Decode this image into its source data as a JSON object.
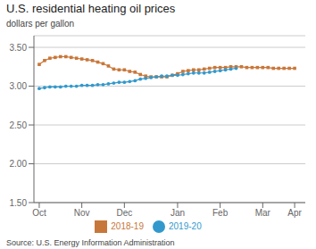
{
  "chart_data": {
    "type": "line",
    "title": "U.S.  residential heating oil prices",
    "ylabel": "dollars per gallon",
    "annotations": [
      "Source: U.S. Energy Information Administration"
    ],
    "xlim": [
      -0.5,
      25
    ],
    "xticks": [
      {
        "value": 0,
        "label": "Oct"
      },
      {
        "value": 4,
        "label": "Nov"
      },
      {
        "value": 8,
        "label": "Dec"
      },
      {
        "value": 13,
        "label": "Jan"
      },
      {
        "value": 17,
        "label": "Feb"
      },
      {
        "value": 21,
        "label": "Mar"
      },
      {
        "value": 24,
        "label": "Apr"
      }
    ],
    "ylim": [
      1.5,
      3.65
    ],
    "yticks": [
      {
        "value": 1.5,
        "label": "1.50"
      },
      {
        "value": 2.0,
        "label": "2.00"
      },
      {
        "value": 2.5,
        "label": "2.50"
      },
      {
        "value": 3.0,
        "label": "3.00"
      },
      {
        "value": 3.5,
        "label": "3.50"
      }
    ],
    "grid": true,
    "legend": "bottom",
    "series": [
      {
        "name": "2018-19",
        "color": "#C8773A",
        "marker": "square",
        "x": [
          0,
          0.5,
          1,
          1.5,
          2,
          2.5,
          3,
          3.5,
          4,
          4.5,
          5,
          5.5,
          6,
          6.5,
          7,
          7.5,
          8,
          8.5,
          9,
          9.5,
          10,
          10.5,
          11,
          11.5,
          12,
          12.5,
          13,
          13.5,
          14,
          14.5,
          15,
          15.5,
          16,
          16.5,
          17,
          17.5,
          18,
          18.5,
          19,
          19.5,
          20,
          20.5,
          21,
          21.5,
          22,
          22.5,
          23,
          23.5,
          24
        ],
        "values": [
          3.28,
          3.33,
          3.36,
          3.37,
          3.38,
          3.38,
          3.37,
          3.36,
          3.35,
          3.34,
          3.33,
          3.31,
          3.29,
          3.26,
          3.22,
          3.21,
          3.21,
          3.19,
          3.18,
          3.15,
          3.13,
          3.12,
          3.12,
          3.12,
          3.12,
          3.14,
          3.16,
          3.19,
          3.2,
          3.21,
          3.21,
          3.22,
          3.23,
          3.24,
          3.24,
          3.24,
          3.25,
          3.25,
          3.25,
          3.24,
          3.24,
          3.24,
          3.24,
          3.24,
          3.23,
          3.23,
          3.23,
          3.23,
          3.23
        ]
      },
      {
        "name": "2019-20",
        "color": "#3399CC",
        "marker": "circle",
        "x": [
          0,
          0.5,
          1,
          1.5,
          2,
          2.5,
          3,
          3.5,
          4,
          4.5,
          5,
          5.5,
          6,
          6.5,
          7,
          7.5,
          8,
          8.5,
          9,
          9.5,
          10,
          10.5,
          11,
          11.5,
          12,
          12.5,
          13,
          13.5,
          14,
          14.5,
          15,
          15.5,
          16,
          16.5,
          17,
          17.5,
          18,
          18.5
        ],
        "values": [
          2.97,
          2.98,
          2.99,
          2.99,
          2.99,
          3.0,
          3.0,
          3.0,
          3.01,
          3.01,
          3.01,
          3.02,
          3.02,
          3.03,
          3.04,
          3.05,
          3.05,
          3.06,
          3.07,
          3.09,
          3.1,
          3.11,
          3.12,
          3.13,
          3.13,
          3.14,
          3.14,
          3.15,
          3.16,
          3.17,
          3.17,
          3.17,
          3.18,
          3.19,
          3.2,
          3.21,
          3.22,
          3.23
        ]
      }
    ]
  }
}
